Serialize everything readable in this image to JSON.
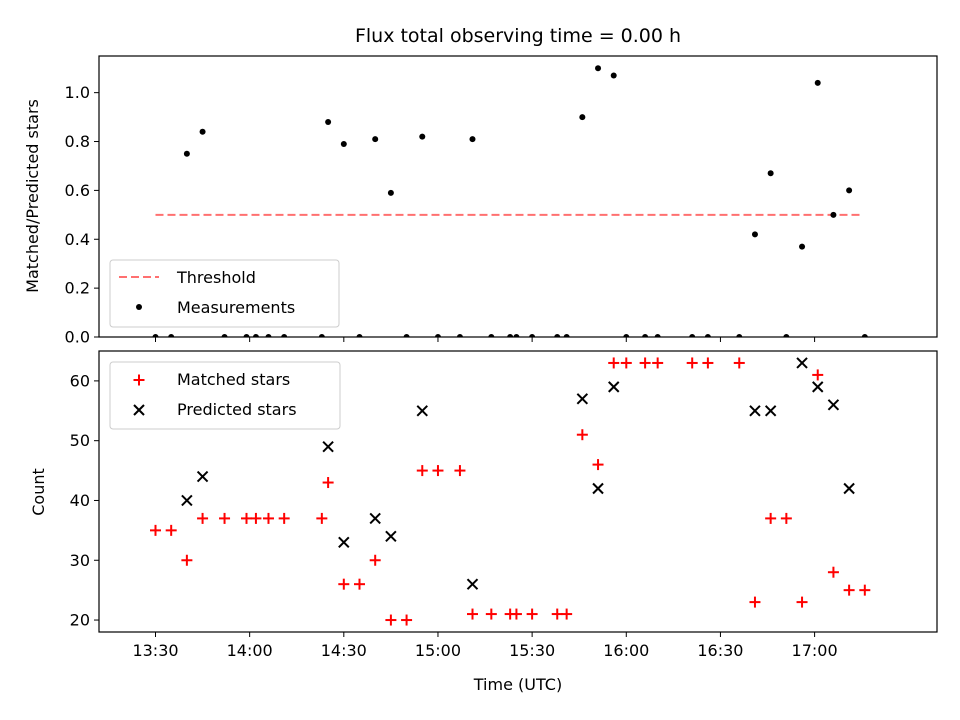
{
  "title": "Flux total observing time = 0.00 h",
  "xlabel": "Time (UTC)",
  "xticks": [
    "13:30",
    "14:00",
    "14:30",
    "15:00",
    "15:30",
    "16:00",
    "16:30",
    "17:00"
  ],
  "colors": {
    "threshold": "#ff7070",
    "measurements": "#000000",
    "matched": "#ff0000",
    "predicted": "#000000"
  },
  "chart_data": [
    {
      "type": "scatter",
      "ylabel": "Matched/Predicted stars",
      "xlim": [
        "13:12",
        "17:39"
      ],
      "ylim": [
        0,
        1.15
      ],
      "yticks": [
        "0.0",
        "0.2",
        "0.4",
        "0.6",
        "0.8",
        "1.0"
      ],
      "legend_position": "lower-left",
      "grid": false,
      "series": [
        {
          "name": "Threshold",
          "style": "dashed-line",
          "x": [
            "13:30",
            "17:15"
          ],
          "y": [
            0.5,
            0.5
          ]
        },
        {
          "name": "Measurements",
          "style": "dots",
          "x": [
            "13:30",
            "13:35",
            "13:40",
            "13:45",
            "13:52",
            "13:59",
            "14:02",
            "14:06",
            "14:11",
            "14:23",
            "14:25",
            "14:30",
            "14:35",
            "14:40",
            "14:45",
            "14:50",
            "14:55",
            "15:00",
            "15:07",
            "15:11",
            "15:17",
            "15:23",
            "15:25",
            "15:30",
            "15:38",
            "15:41",
            "15:46",
            "15:51",
            "15:56",
            "16:00",
            "16:06",
            "16:10",
            "16:21",
            "16:26",
            "16:36",
            "16:41",
            "16:46",
            "16:51",
            "16:56",
            "17:01",
            "17:06",
            "17:11",
            "17:16"
          ],
          "y": [
            0,
            0,
            0.75,
            0.84,
            0,
            0,
            0,
            0,
            0,
            0,
            0.88,
            0.79,
            0,
            0.81,
            0.59,
            0,
            0.82,
            0,
            0,
            0.81,
            0,
            0,
            0,
            0,
            0,
            0,
            0.9,
            1.1,
            1.07,
            0,
            0,
            0,
            0,
            0,
            0,
            0.42,
            0.67,
            0,
            0.37,
            1.04,
            0.5,
            0.6,
            0
          ]
        }
      ]
    },
    {
      "type": "scatter",
      "ylabel": "Count",
      "xlim": [
        "13:12",
        "17:39"
      ],
      "ylim": [
        18,
        65
      ],
      "yticks": [
        "20",
        "30",
        "40",
        "50",
        "60"
      ],
      "legend_position": "upper-left",
      "grid": false,
      "series": [
        {
          "name": "Matched stars",
          "marker": "+",
          "x": [
            "13:30",
            "13:35",
            "13:40",
            "13:45",
            "13:52",
            "13:59",
            "14:02",
            "14:06",
            "14:11",
            "14:23",
            "14:25",
            "14:30",
            "14:35",
            "14:40",
            "14:45",
            "14:50",
            "14:55",
            "15:00",
            "15:07",
            "15:11",
            "15:17",
            "15:23",
            "15:25",
            "15:30",
            "15:38",
            "15:41",
            "15:46",
            "15:51",
            "15:56",
            "16:00",
            "16:06",
            "16:10",
            "16:21",
            "16:26",
            "16:36",
            "16:41",
            "16:46",
            "16:51",
            "16:56",
            "17:01",
            "17:06",
            "17:11",
            "17:16"
          ],
          "y": [
            35,
            35,
            30,
            37,
            37,
            37,
            37,
            37,
            37,
            37,
            43,
            26,
            26,
            30,
            20,
            20,
            45,
            45,
            45,
            21,
            21,
            21,
            21,
            21,
            21,
            21,
            51,
            46,
            63,
            63,
            63,
            63,
            63,
            63,
            63,
            23,
            37,
            37,
            23,
            61,
            28,
            25,
            25
          ]
        },
        {
          "name": "Predicted stars",
          "marker": "x",
          "x": [
            "13:40",
            "13:45",
            "14:25",
            "14:30",
            "14:40",
            "14:45",
            "14:55",
            "15:11",
            "15:46",
            "15:51",
            "15:56",
            "16:41",
            "16:46",
            "16:56",
            "17:01",
            "17:06",
            "17:11"
          ],
          "y": [
            40,
            44,
            49,
            33,
            37,
            34,
            55,
            26,
            57,
            42,
            59,
            55,
            55,
            63,
            59,
            56,
            42
          ]
        }
      ]
    }
  ]
}
